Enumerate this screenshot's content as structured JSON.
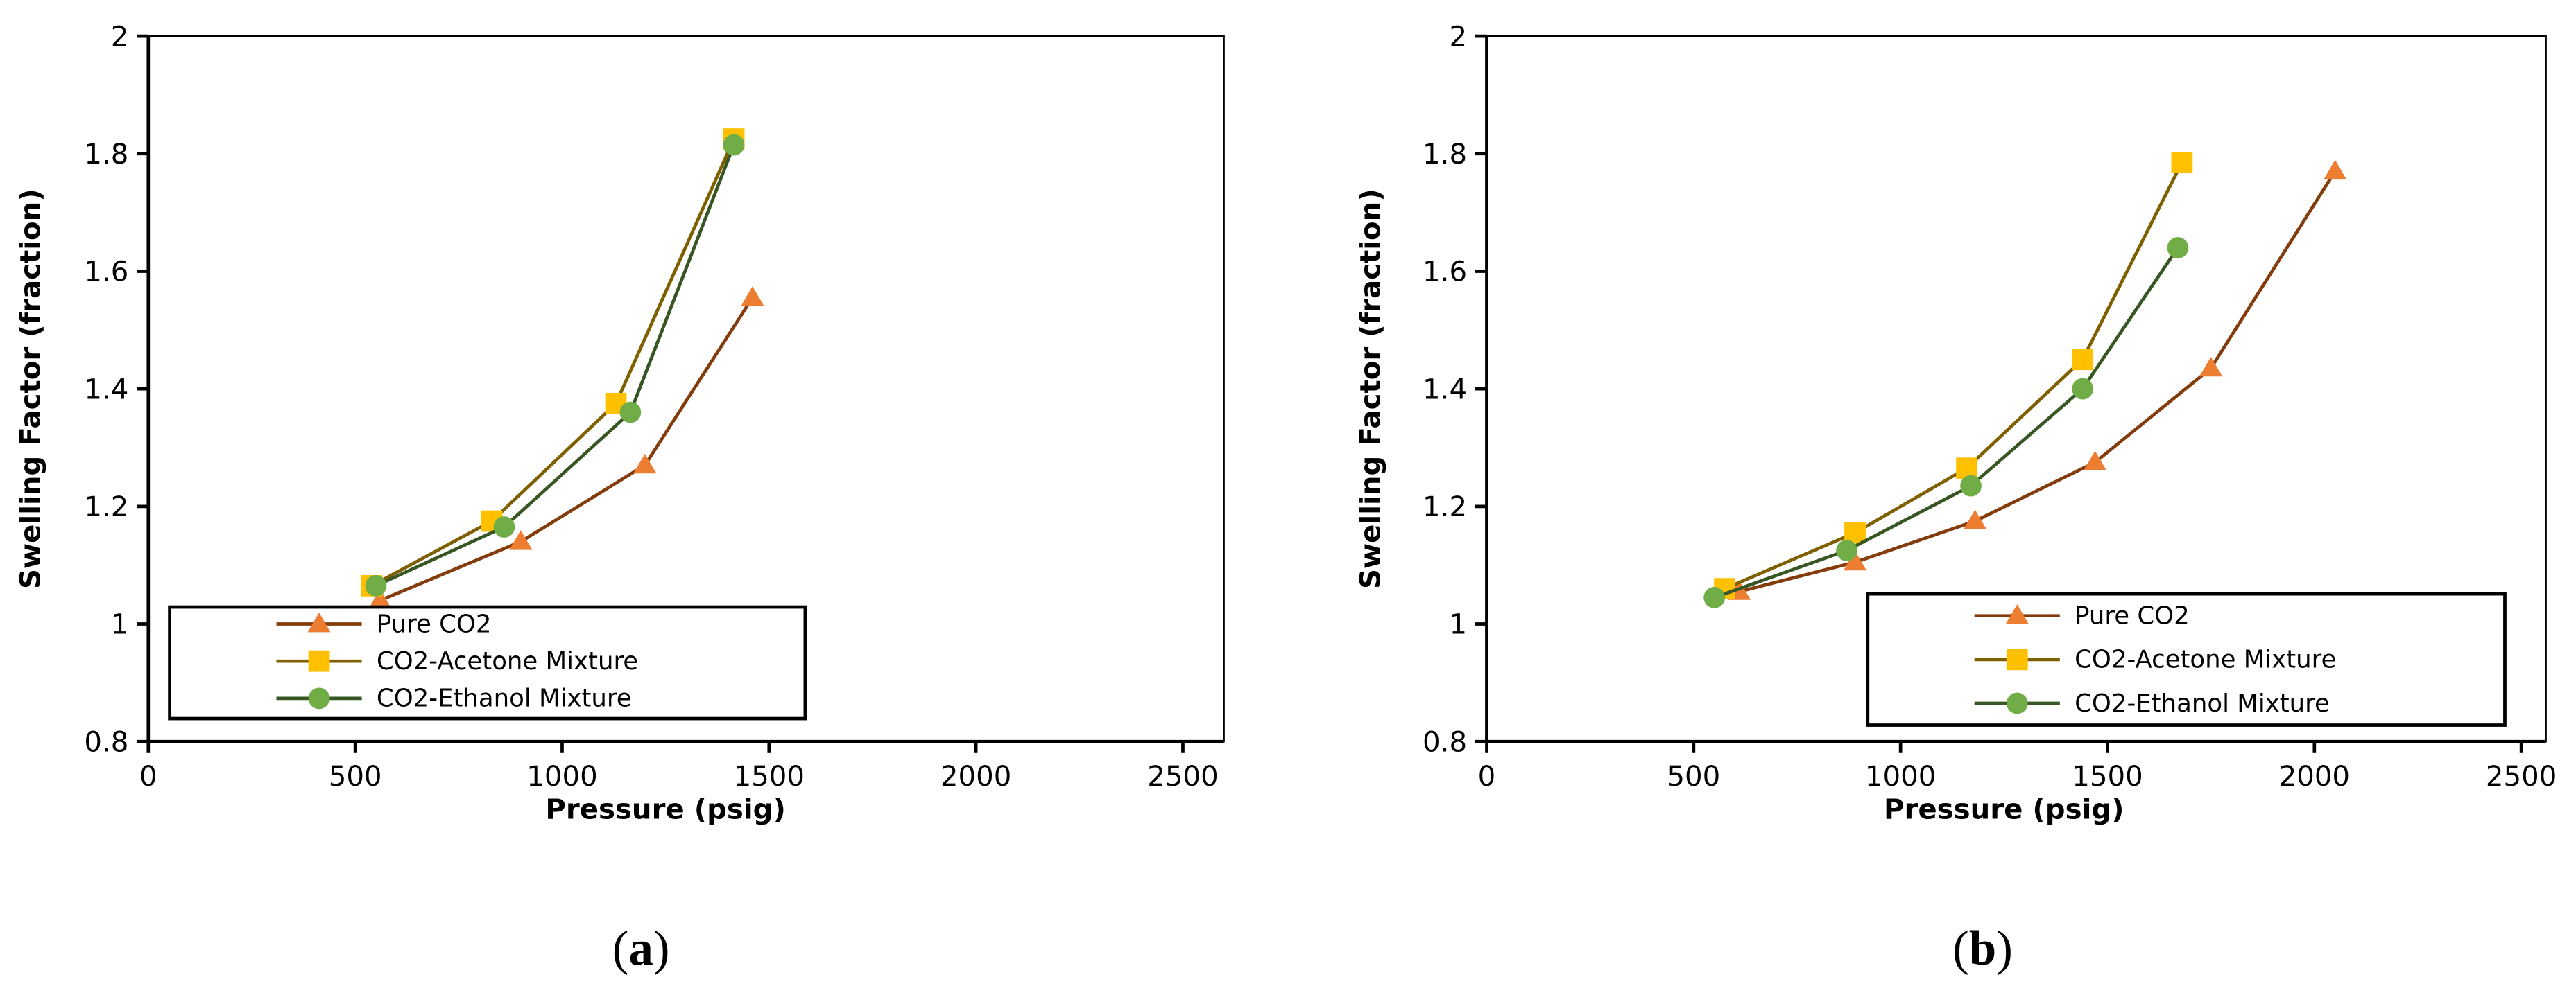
{
  "chart_data": [
    {
      "type": "line",
      "panel_label": "a",
      "xlabel": "Pressure (psig)",
      "ylabel": "Swelling Factor (fraction)",
      "xlim": [
        0,
        2500
      ],
      "ylim": [
        0.8,
        2
      ],
      "xticks": [
        "0",
        "500",
        "1000",
        "1500",
        "2000",
        "2500"
      ],
      "yticks": [
        "0.8",
        "1",
        "1.2",
        "1.4",
        "1.6",
        "1.8",
        "2"
      ],
      "grid": false,
      "legend_placement": "bottom-left",
      "series": [
        {
          "name": "Pure CO2",
          "marker": "triangle",
          "line_color": "#843C0C",
          "marker_color": "#ED7D31",
          "x": [
            560,
            900,
            1200,
            1460
          ],
          "y": [
            1.04,
            1.14,
            1.27,
            1.555
          ]
        },
        {
          "name": "CO2-Acetone Mixture",
          "marker": "square",
          "line_color": "#7F6000",
          "marker_color": "#FFC000",
          "x": [
            540,
            830,
            1130,
            1415
          ],
          "y": [
            1.065,
            1.175,
            1.375,
            1.825
          ]
        },
        {
          "name": "CO2-Ethanol Mixture",
          "marker": "circle",
          "line_color": "#375623",
          "marker_color": "#70AD47",
          "x": [
            550,
            860,
            1165,
            1415
          ],
          "y": [
            1.065,
            1.165,
            1.36,
            1.815
          ]
        }
      ]
    },
    {
      "type": "line",
      "panel_label": "b",
      "xlabel": "Pressure (psig)",
      "ylabel": "Swelling Factor (fraction)",
      "xlim": [
        0,
        2500
      ],
      "ylim": [
        0.8,
        2
      ],
      "xticks": [
        "0",
        "500",
        "1000",
        "1500",
        "2000",
        "2500"
      ],
      "yticks": [
        "0.8",
        "1",
        "1.2",
        "1.4",
        "1.6",
        "1.8",
        "2"
      ],
      "grid": false,
      "legend_placement": "bottom-right",
      "series": [
        {
          "name": "Pure CO2",
          "marker": "triangle",
          "line_color": "#843C0C",
          "marker_color": "#ED7D31",
          "x": [
            610,
            890,
            1180,
            1470,
            1750,
            2050
          ],
          "y": [
            1.055,
            1.105,
            1.175,
            1.275,
            1.435,
            1.77
          ]
        },
        {
          "name": "CO2-Acetone Mixture",
          "marker": "square",
          "line_color": "#7F6000",
          "marker_color": "#FFC000",
          "x": [
            575,
            890,
            1160,
            1440,
            1680
          ],
          "y": [
            1.06,
            1.155,
            1.265,
            1.45,
            1.785
          ]
        },
        {
          "name": "CO2-Ethanol Mixture",
          "marker": "circle",
          "line_color": "#375623",
          "marker_color": "#70AD47",
          "x": [
            550,
            870,
            1170,
            1440,
            1670
          ],
          "y": [
            1.045,
            1.125,
            1.235,
            1.4,
            1.64
          ]
        }
      ]
    }
  ]
}
